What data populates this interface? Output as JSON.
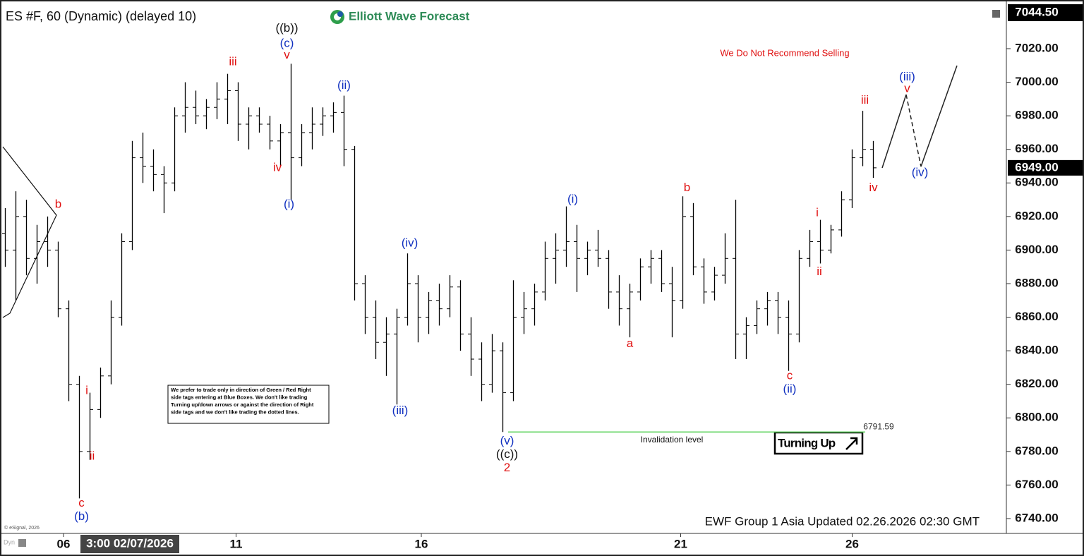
{
  "chart_data": {
    "type": "ohlc",
    "title": "ES #F, 60 (Dynamic) (delayed 10)",
    "logo": "Elliott Wave Forecast",
    "warning": "We Do Not Recommend Selling",
    "note": [
      "We prefer to trade only in direction of Green / Red Right",
      "side tags entering at Blue Boxes. We don't like trading",
      "Turning up/down arrows or against the direction of Right",
      "side tags and we don't like trading the dotted lines."
    ],
    "signal": "Turning Up",
    "invalidation_label": "Invalidation level",
    "invalidation_price": 6791.59,
    "footer": "EWF Group 1 Asia Updated 02.26.2026 02:30 GMT",
    "copyright": "© eSignal, 2026",
    "dyn_label": "Dyn",
    "crosshair_label": "3:00 02/07/2026",
    "color": "#000000",
    "invalidation_color": "#5fd35f",
    "last_price": {
      "value": 6949,
      "label": "6949.00"
    },
    "top_price": {
      "value": 7044.5,
      "label": "7044.50"
    },
    "ylim": [
      6732,
      7049
    ],
    "yticks": [
      {
        "value": 6740,
        "label": "6740.00"
      },
      {
        "value": 6760,
        "label": "6760.00"
      },
      {
        "value": 6780,
        "label": "6780.00"
      },
      {
        "value": 6800,
        "label": "6800.00"
      },
      {
        "value": 6820,
        "label": "6820.00"
      },
      {
        "value": 6840,
        "label": "6840.00"
      },
      {
        "value": 6860,
        "label": "6860.00"
      },
      {
        "value": 6880,
        "label": "6880.00"
      },
      {
        "value": 6900,
        "label": "6900.00"
      },
      {
        "value": 6920,
        "label": "6920.00"
      },
      {
        "value": 6940,
        "label": "6940.00"
      },
      {
        "value": 6960,
        "label": "6960.00"
      },
      {
        "value": 6980,
        "label": "6980.00"
      },
      {
        "value": 7000,
        "label": "7000.00"
      },
      {
        "value": 7020,
        "label": "7020.00"
      }
    ],
    "xlim": [
      0,
      95
    ],
    "xticks": [
      {
        "value": 6,
        "label": "06"
      },
      {
        "value": 22.3,
        "label": "11"
      },
      {
        "value": 39.8,
        "label": "16"
      },
      {
        "value": 64.3,
        "label": "21"
      },
      {
        "value": 80.5,
        "label": "26"
      }
    ],
    "bars": [
      [
        6910,
        6925,
        6890,
        6900
      ],
      [
        6900,
        6935,
        6870,
        6920
      ],
      [
        6920,
        6930,
        6885,
        6895
      ],
      [
        6895,
        6915,
        6880,
        6905
      ],
      [
        6905,
        6920,
        6890,
        6900
      ],
      [
        6900,
        6905,
        6860,
        6865
      ],
      [
        6865,
        6870,
        6810,
        6820
      ],
      [
        6820,
        6825,
        6752,
        6780
      ],
      [
        6780,
        6815,
        6775,
        6805
      ],
      [
        6805,
        6830,
        6800,
        6825
      ],
      [
        6825,
        6870,
        6820,
        6860
      ],
      [
        6860,
        6910,
        6855,
        6905
      ],
      [
        6905,
        6965,
        6900,
        6955
      ],
      [
        6955,
        6970,
        6940,
        6950
      ],
      [
        6950,
        6960,
        6935,
        6945
      ],
      [
        6945,
        6950,
        6922,
        6940
      ],
      [
        6940,
        6985,
        6935,
        6980
      ],
      [
        6980,
        7000,
        6970,
        6985
      ],
      [
        6985,
        6995,
        6975,
        6980
      ],
      [
        6980,
        6990,
        6972,
        6985
      ],
      [
        6985,
        7000,
        6978,
        6990
      ],
      [
        6990,
        7005,
        6975,
        6995
      ],
      [
        6995,
        7000,
        6965,
        6975
      ],
      [
        6975,
        6985,
        6960,
        6980
      ],
      [
        6980,
        6985,
        6970,
        6975
      ],
      [
        6975,
        6980,
        6960,
        6965
      ],
      [
        6965,
        6975,
        6950,
        6970
      ],
      [
        6970,
        7011,
        6930,
        6955
      ],
      [
        6955,
        6975,
        6950,
        6970
      ],
      [
        6970,
        6985,
        6960,
        6975
      ],
      [
        6975,
        6985,
        6968,
        6980
      ],
      [
        6980,
        6988,
        6970,
        6982
      ],
      [
        6982,
        6992,
        6950,
        6960
      ],
      [
        6960,
        6962,
        6870,
        6880
      ],
      [
        6880,
        6885,
        6850,
        6860
      ],
      [
        6860,
        6870,
        6835,
        6845
      ],
      [
        6845,
        6860,
        6825,
        6850
      ],
      [
        6850,
        6865,
        6808,
        6860
      ],
      [
        6860,
        6898,
        6855,
        6880
      ],
      [
        6880,
        6885,
        6845,
        6860
      ],
      [
        6860,
        6875,
        6850,
        6870
      ],
      [
        6870,
        6880,
        6855,
        6865
      ],
      [
        6865,
        6885,
        6860,
        6878
      ],
      [
        6878,
        6882,
        6840,
        6850
      ],
      [
        6850,
        6860,
        6825,
        6835
      ],
      [
        6835,
        6845,
        6810,
        6820
      ],
      [
        6820,
        6850,
        6815,
        6840
      ],
      [
        6840,
        6845,
        6791.59,
        6815
      ],
      [
        6815,
        6882,
        6810,
        6860
      ],
      [
        6860,
        6875,
        6850,
        6865
      ],
      [
        6865,
        6880,
        6855,
        6875
      ],
      [
        6875,
        6905,
        6870,
        6895
      ],
      [
        6895,
        6910,
        6880,
        6900
      ],
      [
        6900,
        6926,
        6890,
        6905
      ],
      [
        6905,
        6915,
        6875,
        6895
      ],
      [
        6895,
        6905,
        6885,
        6900
      ],
      [
        6900,
        6912,
        6890,
        6895
      ],
      [
        6895,
        6900,
        6865,
        6875
      ],
      [
        6875,
        6885,
        6855,
        6865
      ],
      [
        6865,
        6880,
        6848,
        6875
      ],
      [
        6875,
        6895,
        6870,
        6890
      ],
      [
        6890,
        6900,
        6880,
        6895
      ],
      [
        6895,
        6900,
        6875,
        6880
      ],
      [
        6880,
        6890,
        6848,
        6870
      ],
      [
        6870,
        6932,
        6865,
        6920
      ],
      [
        6920,
        6928,
        6885,
        6890
      ],
      [
        6890,
        6895,
        6868,
        6875
      ],
      [
        6875,
        6890,
        6870,
        6885
      ],
      [
        6885,
        6910,
        6880,
        6895
      ],
      [
        6895,
        6930,
        6835,
        6850
      ],
      [
        6850,
        6860,
        6835,
        6855
      ],
      [
        6855,
        6870,
        6850,
        6865
      ],
      [
        6865,
        6875,
        6855,
        6870
      ],
      [
        6870,
        6875,
        6850,
        6860
      ],
      [
        6860,
        6870,
        6828,
        6850
      ],
      [
        6850,
        6900,
        6845,
        6895
      ],
      [
        6895,
        6912,
        6890,
        6905
      ],
      [
        6905,
        6918,
        6892,
        6900
      ],
      [
        6900,
        6915,
        6898,
        6912
      ],
      [
        6912,
        6935,
        6908,
        6930
      ],
      [
        6930,
        6960,
        6925,
        6955
      ],
      [
        6955,
        6983,
        6950,
        6960
      ],
      [
        6960,
        6965,
        6943,
        6949
      ]
    ],
    "wave_labels": [
      {
        "text": "b",
        "color": "#e01010",
        "at": 5,
        "price": 6927
      },
      {
        "text": "i",
        "color": "#e01010",
        "at": 7.7,
        "price": 6816
      },
      {
        "text": "ii",
        "color": "#e01010",
        "at": 8.2,
        "price": 6777
      },
      {
        "text": "c",
        "color": "#e01010",
        "at": 7.2,
        "price": 6749
      },
      {
        "text": "(b)",
        "color": "#1030c0",
        "at": 7.2,
        "price": 6741
      },
      {
        "text": "iii",
        "color": "#e01010",
        "at": 21.5,
        "price": 7012
      },
      {
        "text": "((b))",
        "color": "#111111",
        "at": 26.6,
        "price": 7032
      },
      {
        "text": "(c)",
        "color": "#1030c0",
        "at": 26.6,
        "price": 7023
      },
      {
        "text": "v",
        "color": "#e01010",
        "at": 26.6,
        "price": 7016
      },
      {
        "text": "iv",
        "color": "#e01010",
        "at": 25.7,
        "price": 6949
      },
      {
        "text": "(i)",
        "color": "#1030c0",
        "at": 26.8,
        "price": 6927
      },
      {
        "text": "(ii)",
        "color": "#1030c0",
        "at": 32,
        "price": 6998
      },
      {
        "text": "(iv)",
        "color": "#1030c0",
        "at": 38.2,
        "price": 6904
      },
      {
        "text": "(iii)",
        "color": "#1030c0",
        "at": 37.3,
        "price": 6804
      },
      {
        "text": "(v)",
        "color": "#1030c0",
        "at": 47.4,
        "price": 6786
      },
      {
        "text": "((c))",
        "color": "#111111",
        "at": 47.4,
        "price": 6778
      },
      {
        "text": "2",
        "color": "#e01010",
        "at": 47.4,
        "price": 6770
      },
      {
        "text": "(i)",
        "color": "#1030c0",
        "at": 53.6,
        "price": 6930
      },
      {
        "text": "a",
        "color": "#e01010",
        "at": 59,
        "price": 6844
      },
      {
        "text": "b",
        "color": "#e01010",
        "at": 64.4,
        "price": 6937
      },
      {
        "text": "c",
        "color": "#e01010",
        "at": 74.1,
        "price": 6825
      },
      {
        "text": "(ii)",
        "color": "#1030c0",
        "at": 74.1,
        "price": 6817
      },
      {
        "text": "i",
        "color": "#e01010",
        "at": 76.7,
        "price": 6922
      },
      {
        "text": "ii",
        "color": "#e01010",
        "at": 76.9,
        "price": 6887
      },
      {
        "text": "iii",
        "color": "#e01010",
        "at": 81.2,
        "price": 6989
      },
      {
        "text": "iv",
        "color": "#e01010",
        "at": 82,
        "price": 6937
      },
      {
        "text": "(iii)",
        "color": "#1030c0",
        "at": 85.2,
        "price": 7003
      },
      {
        "text": "v",
        "color": "#e01010",
        "at": 85.2,
        "price": 6996
      },
      {
        "text": "(iv)",
        "color": "#1030c0",
        "at": 86.4,
        "price": 6946
      }
    ]
  }
}
